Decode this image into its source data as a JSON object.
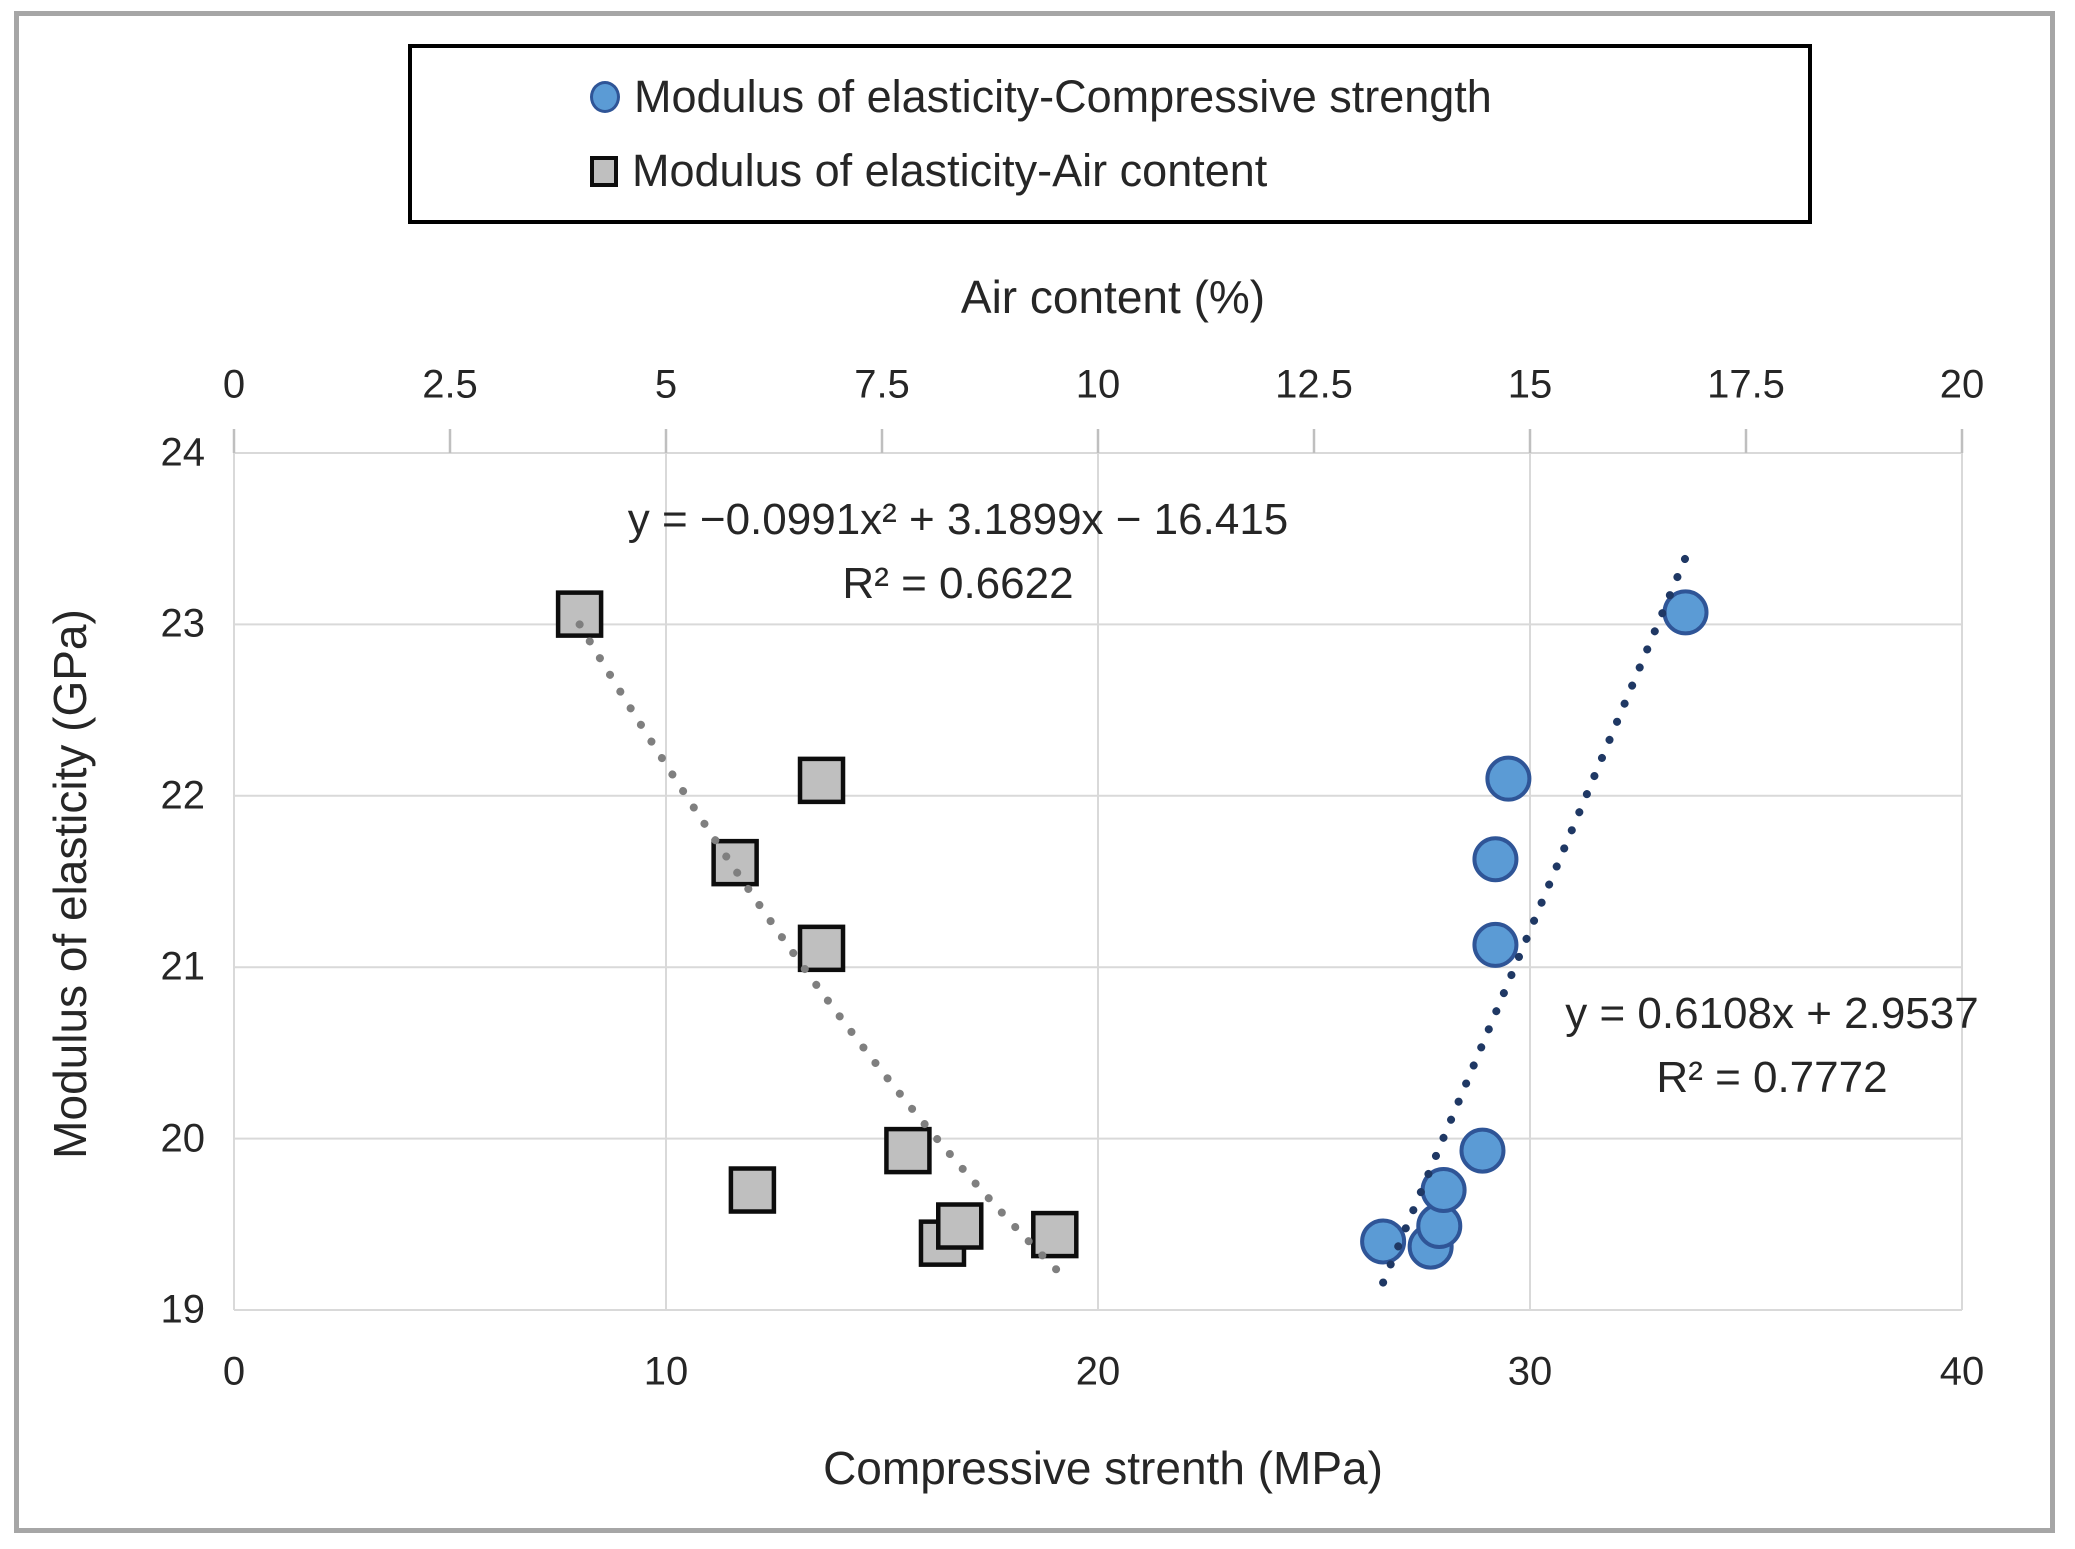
{
  "window": {
    "background": "#ffffff",
    "frame_color": "#a6a6a6"
  },
  "legend": {
    "items": [
      {
        "label": "Modulus of elasticity-Compressive strength",
        "marker": "circle"
      },
      {
        "label": "Modulus of elasticity-Air content",
        "marker": "square"
      }
    ]
  },
  "chart_data": {
    "type": "scatter",
    "title": "",
    "grid": true,
    "legend_position": "top-center",
    "colors": {
      "circle_fill": "#5b9bd5",
      "circle_stroke": "#2f5597",
      "square_fill": "#bfbfbf",
      "square_stroke": "#0d0d0d",
      "gridline": "#d9d9d9",
      "tick_mark": "#bfbfbf",
      "trend_compressive": "#1f3864",
      "trend_air": "#7f7f7f"
    },
    "axes": {
      "top_x": {
        "label": "Air content (%)",
        "min": 0,
        "max": 20,
        "ticks": [
          0,
          2.5,
          5,
          7.5,
          10,
          12.5,
          15,
          17.5,
          20
        ],
        "tick_labels": [
          "0",
          "2.5",
          "5",
          "7.5",
          "10",
          "12.5",
          "15",
          "17.5",
          "20"
        ]
      },
      "bottom_x": {
        "label": "Compressive strenth (MPa)",
        "min": 0,
        "max": 40,
        "ticks": [
          0,
          10,
          20,
          30,
          40
        ],
        "tick_labels": [
          "0",
          "10",
          "20",
          "30",
          "40"
        ]
      },
      "y": {
        "label": "Modulus of elasticity (GPa)",
        "min": 19,
        "max": 24,
        "ticks": [
          24,
          23,
          22,
          21,
          20,
          19
        ],
        "tick_labels": [
          "24",
          "23",
          "22",
          "21",
          "20",
          "19"
        ]
      }
    },
    "series": [
      {
        "name": "Modulus of elasticity-Compressive strength",
        "x_axis": "bottom_x",
        "marker": "circle",
        "points": [
          [
            26.6,
            19.4
          ],
          [
            27.7,
            19.37
          ],
          [
            27.9,
            19.49
          ],
          [
            28.0,
            19.7
          ],
          [
            28.9,
            19.93
          ],
          [
            29.2,
            21.13
          ],
          [
            29.2,
            21.63
          ],
          [
            29.5,
            22.1
          ],
          [
            33.6,
            23.07
          ]
        ],
        "trendline": {
          "shape": "line",
          "p0": [
            26.6,
            19.16
          ],
          "p2": [
            33.7,
            23.45
          ],
          "equation": "y = 0.6108x + 2.9537",
          "r_squared": "R² = 0.7772"
        }
      },
      {
        "name": "Modulus of elasticity-Air content",
        "x_axis": "top_x",
        "marker": "square",
        "points": [
          [
            4.0,
            23.06
          ],
          [
            5.8,
            21.61
          ],
          [
            6.0,
            19.7
          ],
          [
            6.8,
            22.09
          ],
          [
            6.8,
            21.11
          ],
          [
            7.8,
            19.93
          ],
          [
            8.2,
            19.39
          ],
          [
            8.4,
            19.49
          ],
          [
            9.5,
            19.44
          ]
        ],
        "trendline": {
          "shape": "quadratic",
          "p0": [
            4.0,
            23.0
          ],
          "control": [
            6.9,
            20.55
          ],
          "p2": [
            9.55,
            19.22
          ],
          "equation": "y = −0.0991x² + 3.1899x − 16.415",
          "r_squared": "R² = 0.6622"
        }
      }
    ]
  },
  "annotations": {
    "eq_air": {
      "line1": "y = −0.0991x² + 3.1899x − 16.415",
      "line2": "R² = 0.6622"
    },
    "eq_strength": {
      "line1": "y = 0.6108x + 2.9537",
      "line2": "R² = 0.7772"
    }
  }
}
